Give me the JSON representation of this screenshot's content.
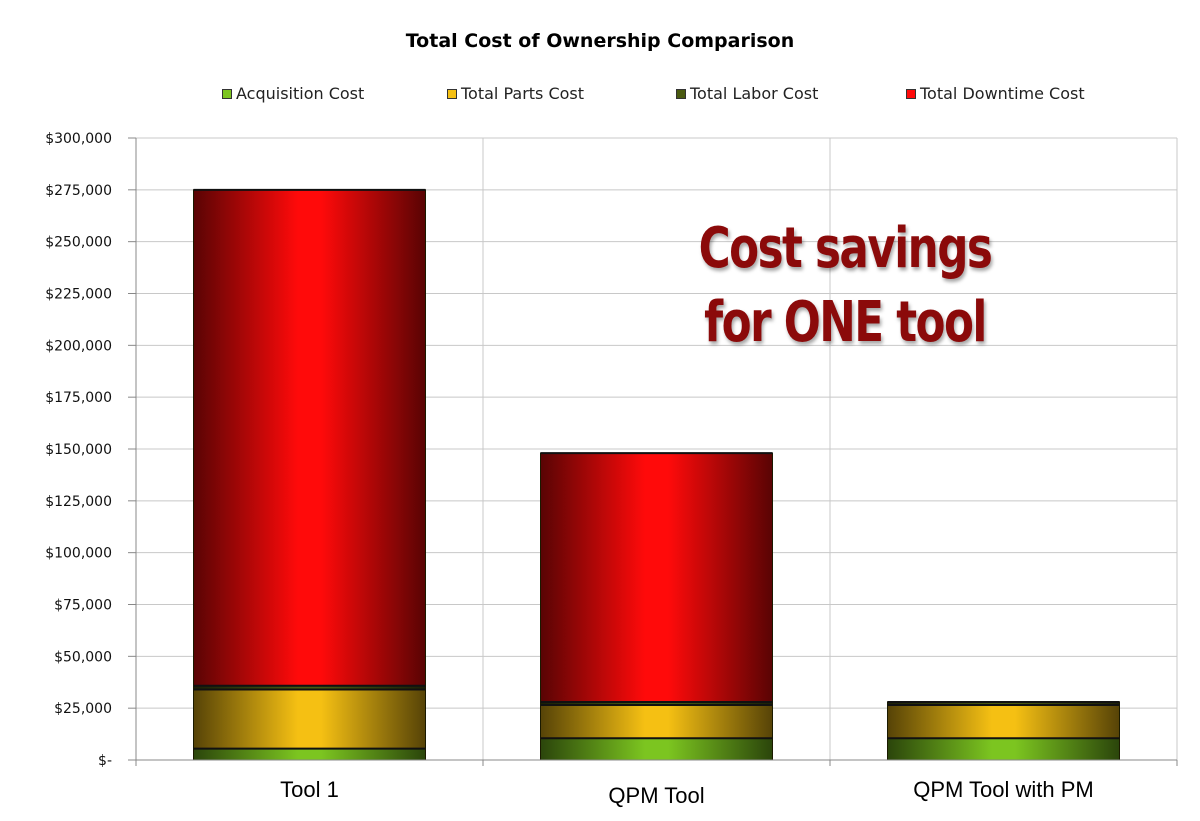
{
  "chart_data": {
    "type": "bar",
    "stacked": true,
    "title": "Total Cost of Ownership Comparison",
    "xlabel": "",
    "ylabel": "",
    "categories": [
      "Tool 1",
      "QPM Tool",
      "QPM Tool with PM"
    ],
    "series": [
      {
        "name": "Acquisition Cost",
        "values": [
          5500,
          10500,
          10500
        ],
        "color": "#7cc520"
      },
      {
        "name": "Total Parts Cost",
        "values": [
          28500,
          16000,
          16000
        ],
        "color": "#f5c013"
      },
      {
        "name": "Total Labor Cost",
        "values": [
          1800,
          1500,
          1500
        ],
        "color": "#4a5a10"
      },
      {
        "name": "Total Downtime Cost",
        "values": [
          239200,
          120000,
          0
        ],
        "color": "#ff0a0a"
      }
    ],
    "ylim": [
      0,
      300000
    ],
    "yticks": [
      "$-",
      "$25,000",
      "$50,000",
      "$75,000",
      "$100,000",
      "$125,000",
      "$150,000",
      "$175,000",
      "$200,000",
      "$225,000",
      "$250,000",
      "$275,000",
      "$300,000"
    ],
    "grid": true,
    "legend_position": "top",
    "annotation": {
      "line1": "Cost savings",
      "line2": "for ONE tool",
      "color": "#8b0a0a"
    }
  }
}
